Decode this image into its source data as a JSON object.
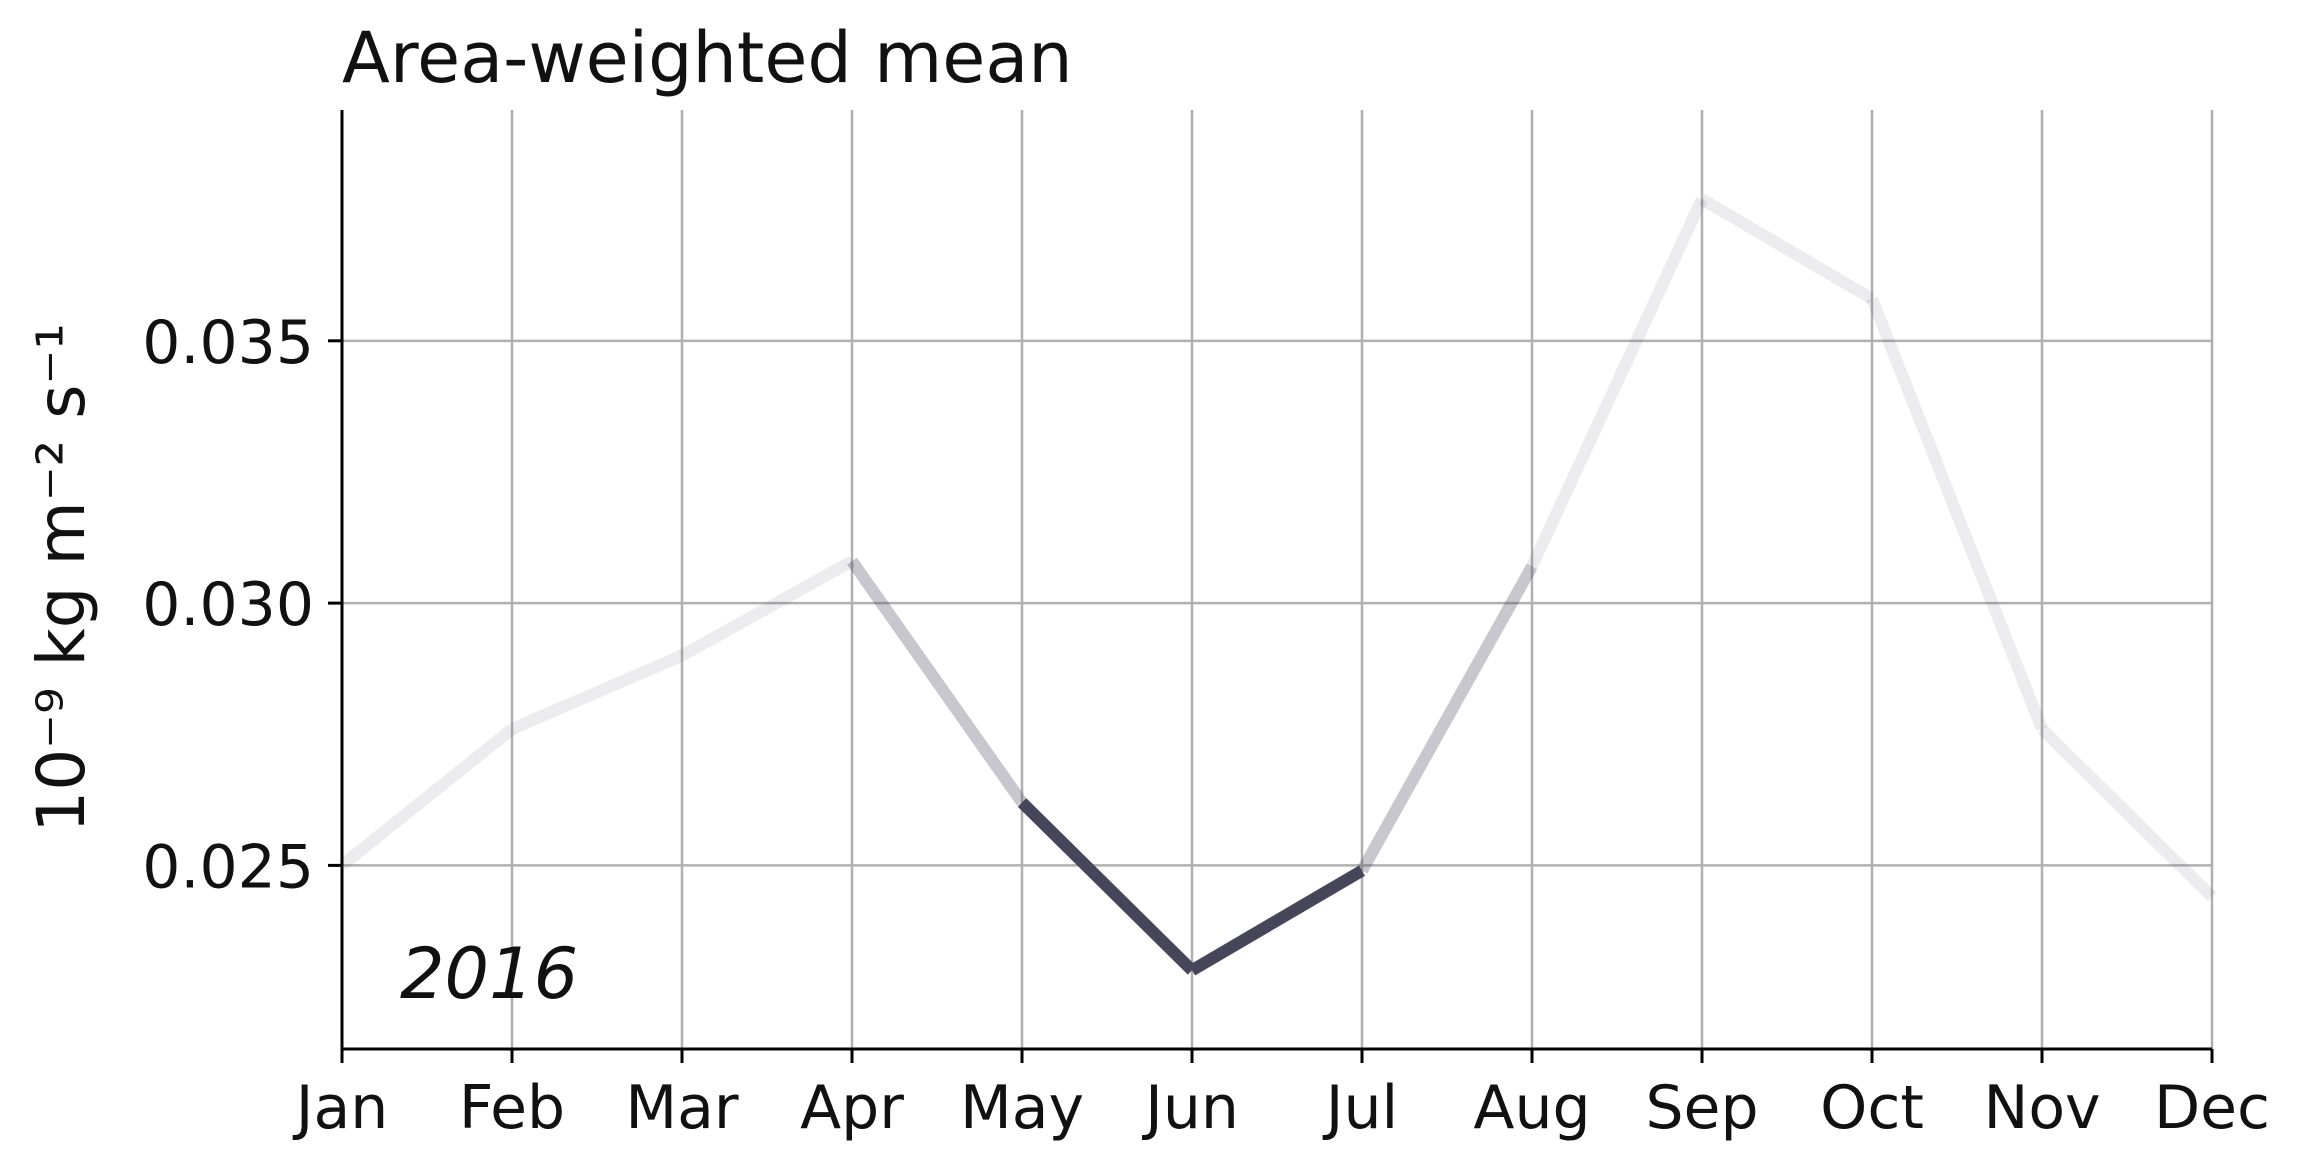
{
  "chart_data": {
    "type": "line",
    "title": "Area-weighted mean",
    "ylabel": "10⁻⁹ kg m⁻² s⁻¹",
    "annotation": "2016",
    "categories": [
      "Jan",
      "Feb",
      "Mar",
      "Apr",
      "May",
      "Jun",
      "Jul",
      "Aug",
      "Sep",
      "Oct",
      "Nov",
      "Dec"
    ],
    "series": [
      {
        "values": [
          0.025,
          0.0276,
          0.029,
          0.0308,
          0.0262,
          0.023,
          0.0249,
          0.0307,
          0.0377,
          0.0358,
          0.0276,
          0.0244
        ]
      }
    ],
    "highlight_months": [
      "May",
      "Jun",
      "Jul"
    ],
    "segment_intensity": [
      0.1,
      0.1,
      0.1,
      0.3,
      1.0,
      1.0,
      0.3,
      0.1,
      0.1,
      0.1,
      0.1
    ],
    "yticks": [
      0.025,
      0.03,
      0.035
    ],
    "ytick_labels": [
      "0.025",
      "0.030",
      "0.035"
    ],
    "ylim": [
      0.0215,
      0.0394
    ],
    "grid": true,
    "colors": {
      "line": "#46455a",
      "grid": "#b0b0b0",
      "axis": "#000000"
    }
  }
}
